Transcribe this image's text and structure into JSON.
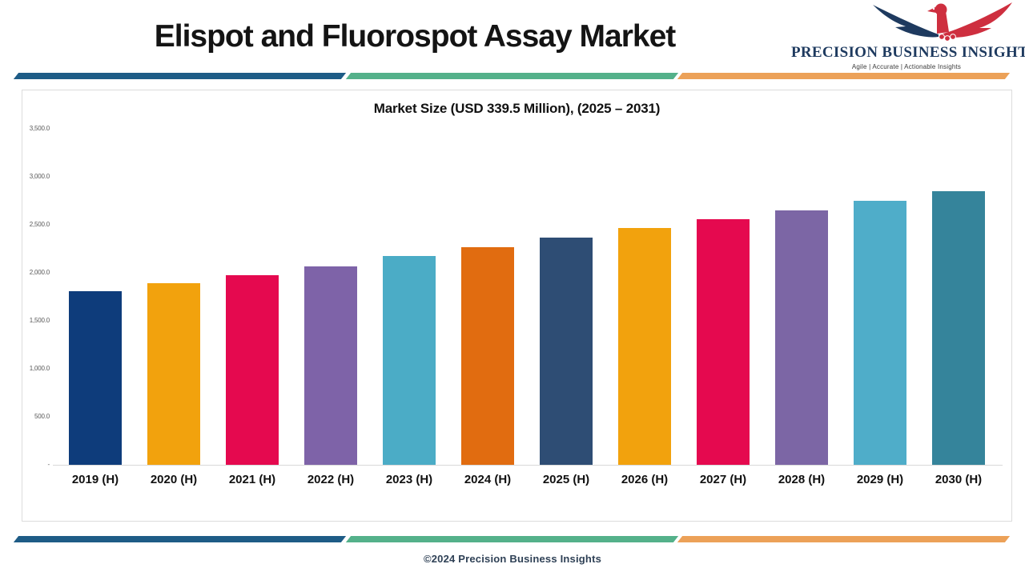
{
  "header": {
    "title": "Elispot and Fluorospot Assay Market",
    "logo": {
      "name": "PRECISION BUSINESS INSIGHTS",
      "tagline": "Agile | Accurate | Actionable Insights",
      "colors": {
        "navy": "#1E3A5F",
        "red": "#CE2F3F"
      }
    }
  },
  "divider_colors": [
    "#1E5C86",
    "#54B18A",
    "#ECA158"
  ],
  "chart_data": {
    "type": "bar",
    "title": "Market Size (USD 339.5 Million), (2025 – 2031)",
    "categories": [
      "2019 (H)",
      "2020 (H)",
      "2021 (H)",
      "2022 (H)",
      "2023 (H)",
      "2024 (H)",
      "2025 (H)",
      "2026 (H)",
      "2027 (H)",
      "2028 (H)",
      "2029 (H)",
      "2030 (H)"
    ],
    "values": [
      1810,
      1890,
      1975,
      2065,
      2175,
      2265,
      2365,
      2465,
      2560,
      2650,
      2750,
      2850
    ],
    "bar_colors": [
      "#0E3C7B",
      "#F2A20D",
      "#E5094F",
      "#7E63A8",
      "#4BACC6",
      "#E16C10",
      "#2E4D74",
      "#F2A20D",
      "#E5094F",
      "#7C66A5",
      "#4FADC9",
      "#35849B"
    ],
    "xlabel": "",
    "ylabel": "",
    "ylim": [
      0,
      3500
    ],
    "ytick_step": 500,
    "ytick_labels": [
      "-",
      "500.0",
      "1,000.0",
      "1,500.0",
      "2,000.0",
      "2,500.0",
      "3,000.0",
      "3,500.0"
    ],
    "grid": false,
    "legend": "none"
  },
  "footer": {
    "copyright": "©2024 Precision Business Insights"
  }
}
